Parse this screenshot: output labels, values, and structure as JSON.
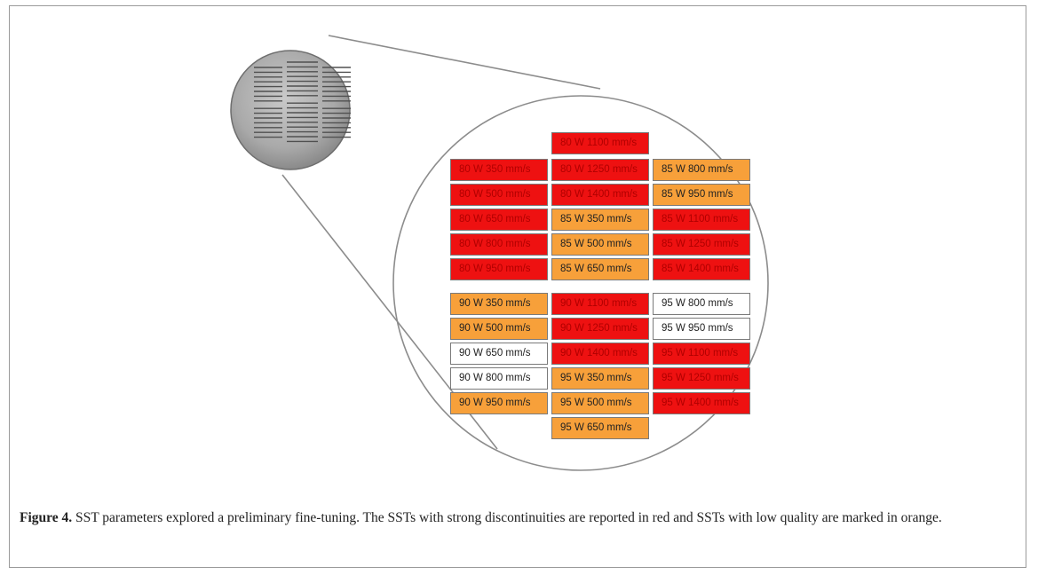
{
  "figure": {
    "label": "Figure 4.",
    "caption": "SST parameters explored a preliminary fine-tuning. The SSTs with strong discontinuities are reported in red and SSTs with low quality are marked in orange.",
    "colors": {
      "red": "#ee1111",
      "orange": "#f7a03a",
      "white": "#ffffff"
    }
  },
  "tracks": [
    {
      "label": "80 W 1100 mm/s",
      "status": "red"
    },
    {
      "label": "80 W 350 mm/s",
      "status": "red"
    },
    {
      "label": "80 W 1250 mm/s",
      "status": "red"
    },
    {
      "label": "85 W 800 mm/s",
      "status": "orange"
    },
    {
      "label": "80 W 500 mm/s",
      "status": "red"
    },
    {
      "label": "80 W 1400 mm/s",
      "status": "red"
    },
    {
      "label": "85 W 950 mm/s",
      "status": "orange"
    },
    {
      "label": "80 W 650 mm/s",
      "status": "red"
    },
    {
      "label": "85 W 350 mm/s",
      "status": "orange"
    },
    {
      "label": "85 W 1100 mm/s",
      "status": "red"
    },
    {
      "label": "80 W 800 mm/s",
      "status": "red"
    },
    {
      "label": "85 W 500 mm/s",
      "status": "orange"
    },
    {
      "label": "85 W 1250 mm/s",
      "status": "red"
    },
    {
      "label": "80 W 950 mm/s",
      "status": "red"
    },
    {
      "label": "85 W 650 mm/s",
      "status": "orange"
    },
    {
      "label": "85 W 1400 mm/s",
      "status": "red"
    },
    {
      "label": "90 W 350 mm/s",
      "status": "orange"
    },
    {
      "label": "90 W 1100 mm/s",
      "status": "red"
    },
    {
      "label": "95 W 800 mm/s",
      "status": "white"
    },
    {
      "label": "90 W 500 mm/s",
      "status": "orange"
    },
    {
      "label": "90 W 1250 mm/s",
      "status": "red"
    },
    {
      "label": "95 W 950 mm/s",
      "status": "white"
    },
    {
      "label": "90 W 650 mm/s",
      "status": "white"
    },
    {
      "label": "90 W 1400 mm/s",
      "status": "red"
    },
    {
      "label": "95 W 1100 mm/s",
      "status": "red"
    },
    {
      "label": "90 W 800 mm/s",
      "status": "white"
    },
    {
      "label": "95 W 350 mm/s",
      "status": "orange"
    },
    {
      "label": "95 W 1250 mm/s",
      "status": "red"
    },
    {
      "label": "90 W 950 mm/s",
      "status": "orange"
    },
    {
      "label": "95 W 500 mm/s",
      "status": "orange"
    },
    {
      "label": "95 W 1400 mm/s",
      "status": "red"
    },
    {
      "label": "95 W 650 mm/s",
      "status": "orange"
    }
  ]
}
